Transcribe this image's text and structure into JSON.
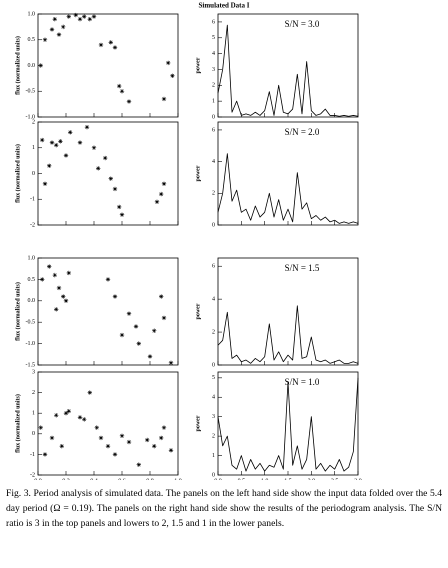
{
  "title": "Simulated Data I",
  "chart_data": [
    {
      "type": "scatter",
      "ylabel": "flux (normalized units)",
      "xlim": [
        0,
        1
      ],
      "ylim": [
        -1,
        1
      ],
      "yticks": [
        {
          "value": 1,
          "label": "1.0"
        },
        {
          "value": 0.5,
          "label": "0.5"
        },
        {
          "value": 0,
          "label": "0.0"
        },
        {
          "value": -0.5,
          "label": "-0.5"
        },
        {
          "value": -1,
          "label": "-1.0"
        }
      ],
      "x": [
        0.02,
        0.05,
        0.1,
        0.12,
        0.15,
        0.18,
        0.22,
        0.27,
        0.3,
        0.33,
        0.37,
        0.4,
        0.45,
        0.52,
        0.55,
        0.58,
        0.6,
        0.65,
        0.9,
        0.93,
        0.96
      ],
      "values": [
        0.0,
        0.5,
        0.7,
        0.9,
        0.6,
        0.75,
        0.95,
        0.98,
        0.9,
        0.95,
        0.9,
        0.95,
        0.4,
        0.45,
        0.35,
        -0.4,
        -0.5,
        -0.7,
        -0.65,
        0.05,
        -0.2
      ]
    },
    {
      "type": "line",
      "ylabel": "power",
      "annotation": "S/N = 3.0",
      "xlim": [
        0,
        3
      ],
      "ylim": [
        0,
        6.5
      ],
      "yticks": [
        0,
        1,
        2,
        3,
        4,
        5,
        6
      ],
      "x": [
        0,
        0.1,
        0.2,
        0.3,
        0.4,
        0.5,
        0.6,
        0.7,
        0.8,
        0.9,
        1,
        1.1,
        1.2,
        1.3,
        1.4,
        1.5,
        1.6,
        1.7,
        1.8,
        1.9,
        2,
        2.1,
        2.2,
        2.3,
        2.4,
        2.5,
        2.6,
        2.7,
        2.8,
        2.9,
        3
      ],
      "values": [
        1.5,
        3.0,
        5.8,
        0.3,
        1.0,
        0.1,
        0.2,
        0.1,
        0.3,
        0.1,
        0.4,
        1.6,
        0.1,
        2.0,
        0.3,
        0.2,
        0.5,
        2.7,
        0.2,
        3.5,
        0.4,
        0.1,
        0.2,
        0.5,
        0.1,
        0.1,
        0.05,
        0.1,
        0.05,
        0.1,
        0.05
      ]
    },
    {
      "type": "scatter",
      "ylabel": "flux (normalized units)",
      "xlim": [
        0,
        1
      ],
      "ylim": [
        -2,
        2
      ],
      "yticks": [
        2,
        1,
        0,
        -1,
        -2
      ],
      "x": [
        0.03,
        0.05,
        0.08,
        0.1,
        0.13,
        0.16,
        0.2,
        0.23,
        0.3,
        0.35,
        0.4,
        0.43,
        0.48,
        0.52,
        0.55,
        0.58,
        0.6,
        0.85,
        0.88,
        0.9
      ],
      "values": [
        1.3,
        -0.4,
        0.3,
        1.2,
        1.1,
        1.25,
        0.7,
        1.6,
        1.2,
        1.8,
        1.0,
        0.2,
        0.6,
        -0.2,
        -0.6,
        -1.3,
        -1.6,
        -1.1,
        -0.8,
        -0.4
      ]
    },
    {
      "type": "line",
      "ylabel": "power",
      "annotation": "S/N = 2.0",
      "xlim": [
        0,
        3
      ],
      "ylim": [
        0,
        6.5
      ],
      "yticks": [
        0,
        2,
        4,
        6
      ],
      "x": [
        0,
        0.1,
        0.2,
        0.3,
        0.4,
        0.5,
        0.6,
        0.7,
        0.8,
        0.9,
        1,
        1.1,
        1.2,
        1.3,
        1.4,
        1.5,
        1.6,
        1.7,
        1.8,
        1.9,
        2,
        2.1,
        2.2,
        2.3,
        2.4,
        2.5,
        2.6,
        2.7,
        2.8,
        2.9,
        3
      ],
      "values": [
        0.8,
        2.0,
        4.5,
        1.5,
        2.2,
        0.8,
        1.0,
        0.3,
        1.2,
        0.5,
        0.8,
        2.0,
        0.5,
        1.6,
        0.3,
        1.0,
        0.2,
        3.3,
        1.0,
        1.4,
        0.4,
        0.6,
        0.3,
        0.5,
        0.2,
        0.3,
        0.1,
        0.2,
        0.1,
        0.2,
        0.1
      ]
    },
    {
      "type": "scatter",
      "ylabel": "flux (normalized units)",
      "xlim": [
        0,
        1
      ],
      "ylim": [
        -1.5,
        1
      ],
      "yticks": [
        {
          "value": 1,
          "label": "1.0"
        },
        {
          "value": 0.5,
          "label": "0.5"
        },
        {
          "value": 0,
          "label": "0.0"
        },
        {
          "value": -0.5,
          "label": "-0.5"
        },
        {
          "value": -1,
          "label": "-1.0"
        },
        {
          "value": -1.5,
          "label": "-1.5"
        }
      ],
      "x": [
        0.03,
        0.08,
        0.12,
        0.13,
        0.15,
        0.18,
        0.2,
        0.22,
        0.5,
        0.55,
        0.6,
        0.65,
        0.7,
        0.72,
        0.8,
        0.83,
        0.88,
        0.9,
        0.95
      ],
      "values": [
        0.5,
        0.8,
        0.6,
        -0.2,
        0.3,
        0.1,
        0.0,
        0.65,
        0.5,
        0.1,
        -0.8,
        -0.3,
        -0.6,
        -1.0,
        -1.3,
        -0.7,
        0.1,
        -0.4,
        -1.45
      ]
    },
    {
      "type": "line",
      "ylabel": "power",
      "annotation": "S/N = 1.5",
      "xlim": [
        0,
        3
      ],
      "ylim": [
        0,
        6.5
      ],
      "yticks": [
        0,
        2,
        4,
        6
      ],
      "x": [
        0,
        0.1,
        0.2,
        0.3,
        0.4,
        0.5,
        0.6,
        0.7,
        0.8,
        0.9,
        1,
        1.1,
        1.2,
        1.3,
        1.4,
        1.5,
        1.6,
        1.7,
        1.8,
        1.9,
        2,
        2.1,
        2.2,
        2.3,
        2.4,
        2.5,
        2.6,
        2.7,
        2.8,
        2.9,
        3
      ],
      "values": [
        1.2,
        1.5,
        3.2,
        0.4,
        0.6,
        0.2,
        0.3,
        0.1,
        0.4,
        0.2,
        0.5,
        2.5,
        0.3,
        0.8,
        0.2,
        0.6,
        0.3,
        3.6,
        0.4,
        0.5,
        1.7,
        0.3,
        0.2,
        0.3,
        0.1,
        0.2,
        0.3,
        0.1,
        0.1,
        0.2,
        0.1
      ]
    },
    {
      "type": "scatter",
      "ylabel": "flux (normalized units)",
      "xlabel": "phase",
      "xlim": [
        0,
        1
      ],
      "ylim": [
        -2,
        3
      ],
      "yticks": [
        3,
        2,
        1,
        0,
        -1,
        -2
      ],
      "xticks": [
        {
          "value": 0,
          "label": "0.0"
        },
        {
          "value": 0.2,
          "label": "0.2"
        },
        {
          "value": 0.4,
          "label": "0.4"
        },
        {
          "value": 0.6,
          "label": "0.6"
        },
        {
          "value": 0.8,
          "label": "0.8"
        },
        {
          "value": 1,
          "label": "1.0"
        }
      ],
      "x": [
        0.02,
        0.05,
        0.1,
        0.13,
        0.17,
        0.2,
        0.22,
        0.3,
        0.33,
        0.37,
        0.42,
        0.45,
        0.5,
        0.55,
        0.6,
        0.65,
        0.72,
        0.78,
        0.83,
        0.88,
        0.9,
        0.95
      ],
      "values": [
        0.3,
        -1.0,
        -0.2,
        0.9,
        -0.6,
        1.0,
        1.1,
        0.8,
        0.7,
        2.0,
        0.3,
        -0.2,
        -0.6,
        -1.0,
        -0.1,
        -0.4,
        -1.5,
        -0.3,
        -0.6,
        -0.2,
        0.3,
        -0.8
      ]
    },
    {
      "type": "line",
      "ylabel": "power",
      "xlabel": "freq. - (1/days)",
      "annotation": "S/N = 1.0",
      "xlim": [
        0,
        3
      ],
      "ylim": [
        0,
        5.3
      ],
      "yticks": [
        0,
        1,
        2,
        3,
        4,
        5
      ],
      "xticks": [
        {
          "value": 0,
          "label": "0.0"
        },
        {
          "value": 0.5,
          "label": "0.5"
        },
        {
          "value": 1,
          "label": "1.0"
        },
        {
          "value": 1.5,
          "label": "1.5"
        },
        {
          "value": 2,
          "label": "2.0"
        },
        {
          "value": 2.5,
          "label": "2.5"
        },
        {
          "value": 3,
          "label": "3.0"
        }
      ],
      "x": [
        0,
        0.1,
        0.2,
        0.3,
        0.4,
        0.5,
        0.6,
        0.7,
        0.8,
        0.9,
        1,
        1.1,
        1.2,
        1.3,
        1.4,
        1.5,
        1.6,
        1.7,
        1.8,
        1.9,
        2,
        2.1,
        2.2,
        2.3,
        2.4,
        2.5,
        2.6,
        2.7,
        2.8,
        2.9,
        3
      ],
      "values": [
        3.0,
        1.5,
        2.0,
        0.5,
        0.3,
        1.0,
        0.2,
        0.8,
        0.3,
        0.6,
        0.2,
        0.5,
        0.4,
        1.0,
        0.3,
        4.8,
        0.5,
        1.5,
        0.3,
        0.8,
        3.0,
        0.3,
        0.6,
        0.2,
        0.5,
        0.3,
        0.8,
        0.2,
        0.4,
        1.2,
        5.0
      ]
    }
  ],
  "caption": "Fig. 3.    Period analysis of simulated data. The panels on the left hand side show the input data folded over the 5.4 day period (Ω = 0.19). The panels on the right hand side show the results of the periodogram analysis. The S/N ratio is 3 in the top panels and lowers to 2, 1.5 and 1 in the lower panels."
}
